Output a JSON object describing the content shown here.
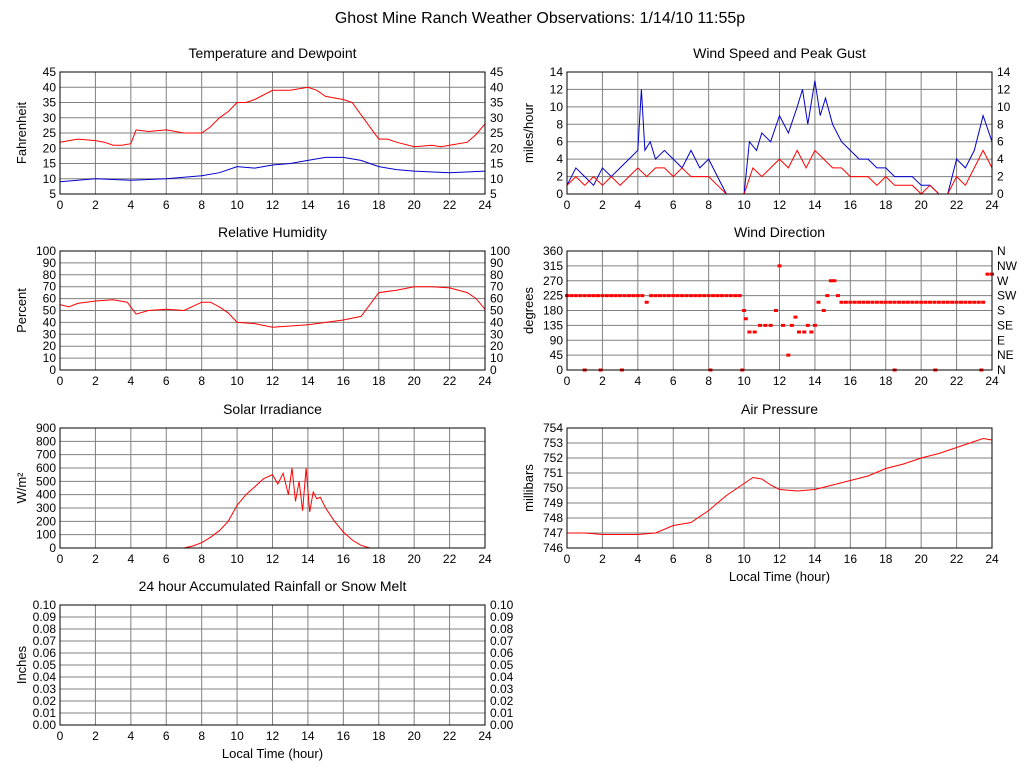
{
  "title": "Ghost Mine Ranch Weather Observations: 1/14/10 11:55p",
  "colors": {
    "red": "#ff0000",
    "blue": "#0000cc",
    "grid": "#808080"
  },
  "chart_data": [
    {
      "id": "temp",
      "type": "line",
      "title": "Temperature and Dewpoint",
      "xlabel": "",
      "ylabel": "Fahrenheit",
      "xlim": [
        0,
        24
      ],
      "ylim": [
        5,
        45
      ],
      "xticks": [
        0,
        2,
        4,
        6,
        8,
        10,
        12,
        14,
        16,
        18,
        20,
        22,
        24
      ],
      "yticks": [
        5,
        10,
        15,
        20,
        25,
        30,
        35,
        40,
        45
      ],
      "right_ticks": [
        "5",
        "10",
        "15",
        "20",
        "25",
        "30",
        "35",
        "40",
        "45"
      ],
      "series": [
        {
          "color": "#ff0000",
          "x": [
            0,
            1,
            2,
            2.5,
            3,
            3.5,
            4,
            4.3,
            5,
            6,
            7,
            8,
            8.5,
            9,
            9.5,
            10,
            10.5,
            11,
            12,
            13,
            14,
            14.5,
            15,
            16,
            16.5,
            17,
            17.5,
            18,
            18.5,
            19,
            20,
            21,
            21.5,
            22,
            23,
            23.5,
            24
          ],
          "y": [
            22,
            23,
            22.5,
            22,
            21,
            21,
            21.5,
            26,
            25.5,
            26,
            25,
            25,
            27,
            30,
            32,
            35,
            35,
            36,
            39,
            39,
            40,
            39,
            37,
            36,
            35,
            31,
            27,
            23,
            23,
            22,
            20.5,
            21,
            20.5,
            21,
            22,
            24.5,
            28
          ]
        },
        {
          "color": "#0000cc",
          "x": [
            0,
            2,
            4,
            6,
            8,
            9,
            10,
            11,
            12,
            13,
            14,
            15,
            16,
            17,
            18,
            19,
            20,
            22,
            24
          ],
          "y": [
            9,
            10,
            9.5,
            10,
            11,
            12,
            14,
            13.5,
            14.5,
            15,
            16,
            17,
            17,
            16,
            14,
            13,
            12.5,
            12,
            12.5
          ]
        }
      ]
    },
    {
      "id": "wind",
      "type": "line",
      "title": "Wind Speed and Peak Gust",
      "xlabel": "",
      "ylabel": "miles/hour",
      "xlim": [
        0,
        24
      ],
      "ylim": [
        0,
        14
      ],
      "xticks": [
        0,
        2,
        4,
        6,
        8,
        10,
        12,
        14,
        16,
        18,
        20,
        22,
        24
      ],
      "yticks": [
        0,
        2,
        4,
        6,
        8,
        10,
        12,
        14
      ],
      "right_ticks": [
        "0",
        "2",
        "4",
        "6",
        "8",
        "10",
        "12",
        "14"
      ],
      "series": [
        {
          "color": "#0000cc",
          "x": [
            0,
            0.5,
            1,
            1.5,
            2,
            2.5,
            3,
            3.5,
            4,
            4.2,
            4.4,
            4.7,
            5,
            5.5,
            6,
            6.5,
            7,
            7.5,
            8,
            8.5,
            9,
            9.5,
            10,
            10.3,
            10.7,
            11,
            11.5,
            12,
            12.5,
            13,
            13.3,
            13.6,
            14,
            14.3,
            14.6,
            15,
            15.5,
            16,
            16.5,
            17,
            17.5,
            18,
            18.5,
            19,
            19.5,
            20,
            20.5,
            21,
            21.5,
            22,
            22.5,
            23,
            23.5,
            24
          ],
          "y": [
            1,
            3,
            2,
            1,
            3,
            2,
            3,
            4,
            5,
            12,
            5,
            6,
            4,
            5,
            4,
            3,
            5,
            3,
            4,
            2,
            0,
            0,
            0,
            6,
            5,
            7,
            6,
            9,
            7,
            10,
            12,
            8,
            13,
            9,
            11,
            8,
            6,
            5,
            4,
            4,
            3,
            3,
            2,
            2,
            2,
            1,
            1,
            0,
            0,
            4,
            3,
            5,
            9,
            6
          ]
        },
        {
          "color": "#ff0000",
          "x": [
            0,
            0.5,
            1,
            1.5,
            2,
            2.5,
            3,
            3.5,
            4,
            4.5,
            5,
            5.5,
            6,
            6.5,
            7,
            7.5,
            8,
            8.5,
            9,
            9.5,
            10,
            10.5,
            11,
            11.5,
            12,
            12.5,
            13,
            13.5,
            14,
            14.5,
            15,
            15.5,
            16,
            16.5,
            17,
            17.5,
            18,
            18.5,
            19,
            19.5,
            20,
            20.5,
            21,
            21.5,
            22,
            22.5,
            23,
            23.5,
            24
          ],
          "y": [
            1,
            2,
            1,
            2,
            1,
            2,
            1,
            2,
            3,
            2,
            3,
            3,
            2,
            3,
            2,
            2,
            2,
            1,
            0,
            0,
            0,
            3,
            2,
            3,
            4,
            3,
            5,
            3,
            5,
            4,
            3,
            3,
            2,
            2,
            2,
            1,
            2,
            1,
            1,
            1,
            0,
            1,
            0,
            0,
            2,
            1,
            3,
            5,
            3
          ]
        }
      ]
    },
    {
      "id": "humidity",
      "type": "line",
      "title": "Relative Humidity",
      "xlabel": "",
      "ylabel": "Percent",
      "xlim": [
        0,
        24
      ],
      "ylim": [
        0,
        100
      ],
      "xticks": [
        0,
        2,
        4,
        6,
        8,
        10,
        12,
        14,
        16,
        18,
        20,
        22,
        24
      ],
      "yticks": [
        0,
        10,
        20,
        30,
        40,
        50,
        60,
        70,
        80,
        90,
        100
      ],
      "right_ticks": [
        "0",
        "10",
        "20",
        "30",
        "40",
        "50",
        "60",
        "70",
        "80",
        "90",
        "100"
      ],
      "series": [
        {
          "color": "#ff0000",
          "x": [
            0,
            0.5,
            1,
            2,
            3,
            3.8,
            4.3,
            5,
            6,
            7,
            8,
            8.5,
            9,
            9.5,
            10,
            11,
            12,
            13,
            14,
            15,
            16,
            17,
            17.5,
            18,
            19,
            20,
            21,
            22,
            23,
            23.5,
            24
          ],
          "y": [
            55,
            53,
            56,
            58,
            59,
            57,
            47,
            50,
            51,
            50,
            57,
            57,
            53,
            48,
            40,
            39,
            36,
            37,
            38,
            40,
            42,
            45,
            55,
            65,
            67,
            70,
            70,
            69,
            65,
            60,
            51
          ]
        }
      ]
    },
    {
      "id": "direction",
      "type": "scatter",
      "title": "Wind Direction",
      "xlabel": "",
      "ylabel": "degrees",
      "xlim": [
        0,
        24
      ],
      "ylim": [
        0,
        360
      ],
      "xticks": [
        0,
        2,
        4,
        6,
        8,
        10,
        12,
        14,
        16,
        18,
        20,
        22,
        24
      ],
      "yticks": [
        0,
        45,
        90,
        135,
        180,
        225,
        270,
        315,
        360
      ],
      "right_ticks": [
        "N",
        "NE",
        "E",
        "SE",
        "S",
        "SW",
        "W",
        "NW",
        "N"
      ],
      "series": [
        {
          "color": "#ff0000",
          "x": [
            0,
            0.25,
            0.5,
            0.75,
            1,
            1.25,
            1.5,
            1.75,
            2,
            2.25,
            2.5,
            2.75,
            3,
            3.25,
            3.5,
            3.75,
            4,
            4.25,
            4.5,
            4.75,
            5,
            5.25,
            5.5,
            5.75,
            6,
            6.25,
            6.5,
            6.75,
            7,
            7.25,
            7.5,
            7.75,
            8,
            8.25,
            8.5,
            8.75,
            9,
            9.25,
            9.5,
            9.75,
            10,
            10.1,
            10.3,
            10.6,
            10.9,
            11.2,
            11.5,
            11.8,
            12,
            12.2,
            12.5,
            12.7,
            12.9,
            13.1,
            13.4,
            13.6,
            13.8,
            14,
            14.2,
            14.5,
            14.7,
            14.9,
            15.1,
            15.3,
            15.5,
            15.75,
            16,
            16.25,
            16.5,
            16.75,
            17,
            17.25,
            17.5,
            17.75,
            18,
            18.25,
            18.5,
            18.75,
            19,
            19.25,
            19.5,
            19.75,
            20,
            20.25,
            20.5,
            20.75,
            21,
            21.25,
            21.5,
            21.75,
            22,
            22.25,
            22.5,
            22.75,
            23,
            23.25,
            23.5,
            23.75,
            24,
            1,
            1.9,
            3.1,
            8.1,
            9.9,
            18.5,
            20.8,
            23.4
          ],
          "y": [
            225,
            225,
            225,
            225,
            225,
            225,
            225,
            225,
            225,
            225,
            225,
            225,
            225,
            225,
            225,
            225,
            225,
            225,
            205,
            225,
            225,
            225,
            225,
            225,
            225,
            225,
            225,
            225,
            225,
            225,
            225,
            225,
            225,
            225,
            225,
            225,
            225,
            225,
            225,
            225,
            180,
            155,
            115,
            115,
            135,
            135,
            135,
            180,
            315,
            135,
            45,
            135,
            160,
            115,
            115,
            135,
            115,
            135,
            205,
            180,
            225,
            270,
            270,
            225,
            205,
            205,
            205,
            205,
            205,
            205,
            205,
            205,
            205,
            205,
            205,
            205,
            205,
            205,
            205,
            205,
            205,
            205,
            205,
            205,
            205,
            205,
            205,
            205,
            205,
            205,
            205,
            205,
            205,
            205,
            205,
            205,
            205,
            290,
            290,
            0,
            0,
            0,
            0,
            0,
            0,
            0,
            0
          ]
        }
      ]
    },
    {
      "id": "solar",
      "type": "line",
      "title": "Solar Irradiance",
      "xlabel": "",
      "ylabel": "W/m²",
      "xlim": [
        0,
        24
      ],
      "ylim": [
        0,
        900
      ],
      "xticks": [
        0,
        2,
        4,
        6,
        8,
        10,
        12,
        14,
        16,
        18,
        20,
        22,
        24
      ],
      "yticks": [
        0,
        100,
        200,
        300,
        400,
        500,
        600,
        700,
        800,
        900
      ],
      "right_ticks": [],
      "series": [
        {
          "color": "#ff0000",
          "x": [
            0,
            7,
            7.5,
            8,
            8.5,
            9,
            9.5,
            10,
            10.5,
            11,
            11.5,
            12,
            12.3,
            12.6,
            12.9,
            13.1,
            13.3,
            13.5,
            13.7,
            13.9,
            14.1,
            14.3,
            14.5,
            14.7,
            15,
            15.5,
            16,
            16.5,
            17,
            17.5,
            24
          ],
          "y": [
            0,
            0,
            15,
            40,
            80,
            130,
            200,
            320,
            400,
            460,
            520,
            550,
            480,
            560,
            400,
            600,
            350,
            500,
            280,
            600,
            270,
            420,
            370,
            380,
            300,
            200,
            120,
            60,
            20,
            0,
            0
          ]
        }
      ]
    },
    {
      "id": "pressure",
      "type": "line",
      "title": "Air Pressure",
      "xlabel": "Local Time (hour)",
      "ylabel": "millibars",
      "xlim": [
        0,
        24
      ],
      "ylim": [
        746,
        754
      ],
      "xticks": [
        0,
        2,
        4,
        6,
        8,
        10,
        12,
        14,
        16,
        18,
        20,
        22,
        24
      ],
      "yticks": [
        746,
        747,
        748,
        749,
        750,
        751,
        752,
        753,
        754
      ],
      "right_ticks": [],
      "series": [
        {
          "color": "#ff0000",
          "x": [
            0,
            1,
            2,
            3,
            4,
            5,
            6,
            7,
            8,
            9,
            10,
            10.5,
            11,
            11.5,
            12,
            13,
            14,
            15,
            16,
            17,
            18,
            19,
            20,
            21,
            22,
            23,
            23.5,
            24
          ],
          "y": [
            747,
            747,
            746.9,
            746.9,
            746.9,
            747,
            747.5,
            747.7,
            748.5,
            749.5,
            750.3,
            750.7,
            750.6,
            750.2,
            749.9,
            749.8,
            749.9,
            750.2,
            750.5,
            750.8,
            751.3,
            751.6,
            752,
            752.3,
            752.7,
            753.1,
            753.3,
            753.2
          ]
        }
      ]
    },
    {
      "id": "rain",
      "type": "line",
      "title": "24 hour Accumulated Rainfall or Snow Melt",
      "xlabel": "Local Time (hour)",
      "ylabel": "Inches",
      "xlim": [
        0,
        24
      ],
      "ylim": [
        0,
        0.1
      ],
      "xticks": [
        0,
        2,
        4,
        6,
        8,
        10,
        12,
        14,
        16,
        18,
        20,
        22,
        24
      ],
      "yticks": [
        0,
        0.01,
        0.02,
        0.03,
        0.04,
        0.05,
        0.06,
        0.07,
        0.08,
        0.09,
        0.1
      ],
      "ytick_labels": [
        "0.00",
        "0.01",
        "0.02",
        "0.03",
        "0.04",
        "0.05",
        "0.06",
        "0.07",
        "0.08",
        "0.09",
        "0.10"
      ],
      "right_ticks": [
        "0.00",
        "0.01",
        "0.02",
        "0.03",
        "0.04",
        "0.05",
        "0.06",
        "0.07",
        "0.08",
        "0.09",
        "0.10"
      ],
      "series": [
        {
          "color": "#ff0000",
          "x": [
            0,
            24
          ],
          "y": [
            0,
            0
          ]
        }
      ]
    }
  ]
}
